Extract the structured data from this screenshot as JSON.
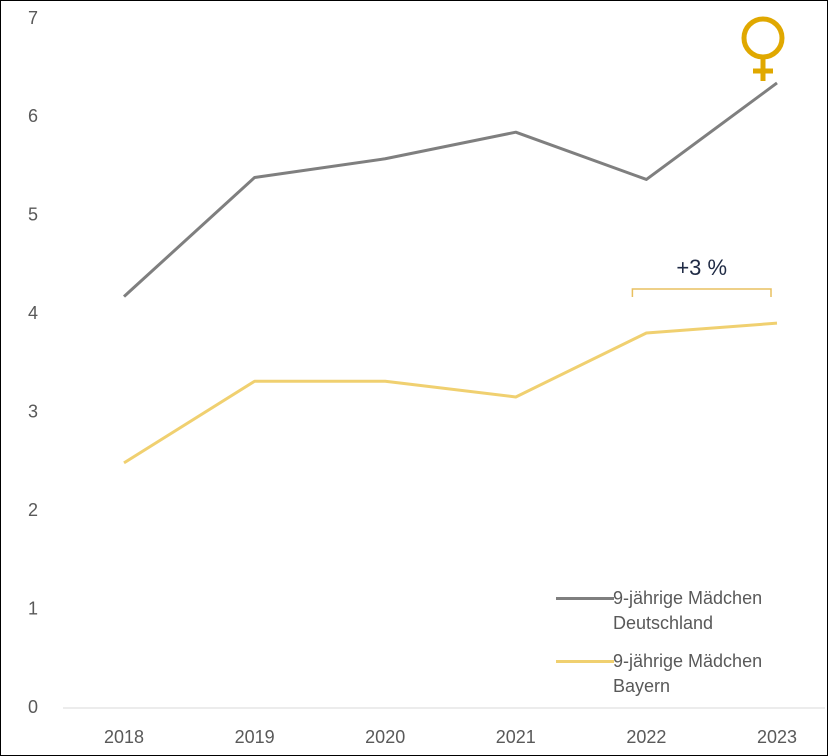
{
  "chart_data": {
    "type": "line",
    "categories": [
      "2018",
      "2019",
      "2020",
      "2021",
      "2022",
      "2023"
    ],
    "series": [
      {
        "name": "9-jährige Mädchen Deutschland",
        "color": "#7f7f7f",
        "values": [
          4.18,
          5.39,
          5.58,
          5.85,
          5.37,
          6.35
        ]
      },
      {
        "name": "9-jährige Mädchen Bayern",
        "color": "#f0d070",
        "values": [
          2.49,
          3.32,
          3.32,
          3.16,
          3.81,
          3.91
        ]
      }
    ],
    "ylim": [
      0,
      7
    ],
    "yticks": [
      0,
      1,
      2,
      3,
      4,
      5,
      6,
      7
    ],
    "grid": false,
    "legend": "lower right",
    "annotation": "+3 %"
  }
}
